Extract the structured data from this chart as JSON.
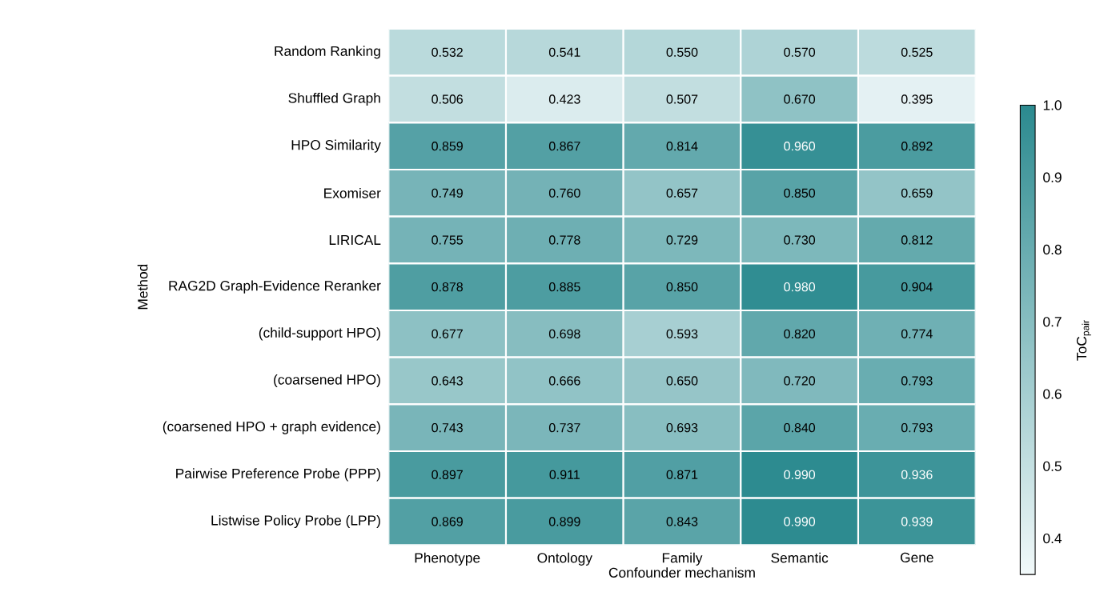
{
  "chart_data": {
    "type": "heatmap",
    "xlabel": "Confounder mechanism",
    "ylabel": "Method",
    "clabel": "ToC$_{pair}$",
    "categories": [
      "Phenotype",
      "Ontology",
      "Family",
      "Semantic",
      "Gene"
    ],
    "y_categories": [
      "Random Ranking",
      "Shuffled Graph",
      "HPO Similarity",
      "Exomiser",
      "LIRICAL",
      "RAG2D Graph-Evidence Reranker",
      "(child-support HPO)",
      "(coarsened HPO)",
      "(coarsened HPO + graph evidence)",
      "Pairwise Preference Probe (PPP)",
      "Listwise Policy Probe (LPP)"
    ],
    "cells": [
      [
        0.532,
        0.541,
        0.55,
        0.57,
        0.525
      ],
      [
        0.506,
        0.423,
        0.507,
        0.67,
        0.395
      ],
      [
        0.859,
        0.867,
        0.814,
        0.96,
        0.892
      ],
      [
        0.749,
        0.76,
        0.657,
        0.85,
        0.659
      ],
      [
        0.755,
        0.778,
        0.729,
        0.73,
        0.812
      ],
      [
        0.878,
        0.885,
        0.85,
        0.98,
        0.904
      ],
      [
        0.677,
        0.698,
        0.593,
        0.82,
        0.774
      ],
      [
        0.643,
        0.666,
        0.65,
        0.72,
        0.793
      ],
      [
        0.743,
        0.737,
        0.693,
        0.84,
        0.793
      ],
      [
        0.897,
        0.911,
        0.871,
        0.99,
        0.936
      ],
      [
        0.869,
        0.899,
        0.843,
        0.99,
        0.939
      ]
    ],
    "cell_labels": [
      [
        "0.532",
        "0.541",
        "0.550",
        "0.570",
        "0.525"
      ],
      [
        "0.506",
        "0.423",
        "0.507",
        "0.670",
        "0.395"
      ],
      [
        "0.859",
        "0.867",
        "0.814",
        "0.960",
        "0.892"
      ],
      [
        "0.749",
        "0.760",
        "0.657",
        "0.850",
        "0.659"
      ],
      [
        "0.755",
        "0.778",
        "0.729",
        "0.730",
        "0.812"
      ],
      [
        "0.878",
        "0.885",
        "0.850",
        "0.980",
        "0.904"
      ],
      [
        "0.677",
        "0.698",
        "0.593",
        "0.820",
        "0.774"
      ],
      [
        "0.643",
        "0.666",
        "0.650",
        "0.720",
        "0.793"
      ],
      [
        "0.743",
        "0.737",
        "0.693",
        "0.840",
        "0.793"
      ],
      [
        "0.897",
        "0.911",
        "0.871",
        "0.990",
        "0.936"
      ],
      [
        "0.869",
        "0.899",
        "0.843",
        "0.990",
        "0.939"
      ]
    ],
    "clim": [
      0.35,
      1.0
    ],
    "cticks": [
      0.4,
      0.5,
      0.6,
      0.7,
      0.8,
      0.9,
      {
        "value": 1.0,
        "label": "1.0"
      }
    ]
  }
}
